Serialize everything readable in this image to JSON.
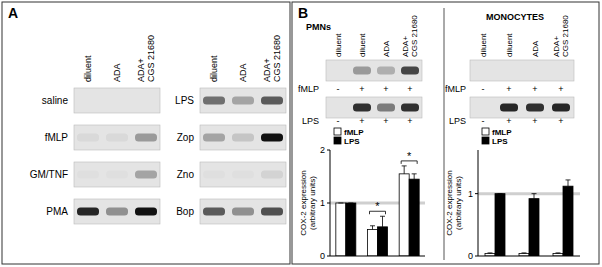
{
  "chart_data": [
    {
      "type": "bar",
      "title": "PMNs",
      "categories": [
        null,
        null,
        null
      ],
      "series": [
        {
          "name": "fMLP",
          "color": "#ffffff",
          "values": [
            1,
            0.5,
            1.55
          ],
          "errors": [
            0,
            0.07,
            0.15
          ]
        },
        {
          "name": "LPS",
          "color": "#000000",
          "values": [
            1,
            0.55,
            1.45
          ],
          "errors": [
            0,
            0.2,
            0.1
          ]
        }
      ],
      "y_label": [
        "COX-2 expression",
        "(arbitrary units)"
      ],
      "ylim": [
        0,
        2
      ],
      "yticks": [
        0,
        1,
        2
      ],
      "reference_line": 1,
      "annotations": [
        null,
        "*",
        "*"
      ],
      "tick_labels": "y",
      "legend": "upper left"
    },
    {
      "type": "bar",
      "title": "MONOCYTES",
      "categories": [
        null,
        null,
        null
      ],
      "series": [
        {
          "name": "fMLP",
          "color": "#ffffff",
          "values": [
            0.04,
            0.04,
            0.04
          ],
          "errors": [
            0.01,
            0.01,
            0.01
          ]
        },
        {
          "name": "LPS",
          "color": "#000000",
          "values": [
            1,
            0.92,
            1.12
          ],
          "errors": [
            0,
            0.08,
            0.1
          ]
        }
      ],
      "y_label": [
        "COX-2 expression",
        "(arbitrary units)"
      ],
      "ylim": [
        0,
        1.7
      ],
      "yticks": [
        0,
        1
      ],
      "reference_line": 1,
      "tick_labels": "y",
      "legend": "upper left"
    }
  ],
  "panel_a": {
    "label": "A",
    "groups": [
      {
        "columns": [
          [
            "diluent"
          ],
          [
            "ADA"
          ],
          [
            "ADA+",
            "CGS 21680"
          ]
        ],
        "rows": [
          {
            "label": "saline",
            "bands": [
              0,
              0,
              0
            ]
          },
          {
            "label": "fMLP",
            "bands": [
              0.05,
              0.05,
              0.35
            ]
          },
          {
            "label": "GM/TNF",
            "bands": [
              0.02,
              0.02,
              0.3
            ]
          },
          {
            "label": "PMA",
            "bands": [
              0.9,
              0.4,
              1
            ]
          }
        ]
      },
      {
        "columns": [
          [
            "diluent"
          ],
          [
            "ADA"
          ],
          [
            "ADA+",
            "CGS 21680"
          ]
        ],
        "rows": [
          {
            "label": "LPS",
            "bands": [
              0.55,
              0.3,
              0.65
            ]
          },
          {
            "label": "Zop",
            "bands": [
              0.3,
              0.15,
              1
            ]
          },
          {
            "label": "Zno",
            "bands": [
              0.02,
              0.02,
              0.08
            ]
          },
          {
            "label": "Bop",
            "bands": [
              0.65,
              0.4,
              0.7
            ]
          }
        ]
      }
    ]
  },
  "panel_b": {
    "label": "B",
    "blots": [
      {
        "columns": [
          [
            "diluent"
          ],
          [
            "diluent"
          ],
          [
            "ADA"
          ],
          [
            "ADA+",
            "CGS 21680"
          ]
        ],
        "rows": [
          {
            "label": "fMLP",
            "signs": [
              "-",
              "+",
              "+",
              "+"
            ],
            "bands": [
              0,
              0.35,
              0.25,
              0.75
            ]
          },
          {
            "label": "LPS",
            "signs": [
              "-",
              "+",
              "+",
              "+"
            ],
            "bands": [
              0,
              0.85,
              0.5,
              0.85
            ]
          }
        ]
      },
      {
        "columns": [
          [
            "diluent"
          ],
          [
            "diluent"
          ],
          [
            "ADA"
          ],
          [
            "ADA+",
            "CGS 21680"
          ]
        ],
        "rows": [
          {
            "label": "fMLP",
            "signs": [
              "-",
              "+",
              "+",
              "+"
            ],
            "bands": [
              0,
              0,
              0,
              0
            ]
          },
          {
            "label": "LPS",
            "signs": [
              "-",
              "+",
              "+",
              "+"
            ],
            "bands": [
              0,
              0.9,
              0.85,
              0.9
            ]
          }
        ]
      }
    ]
  }
}
